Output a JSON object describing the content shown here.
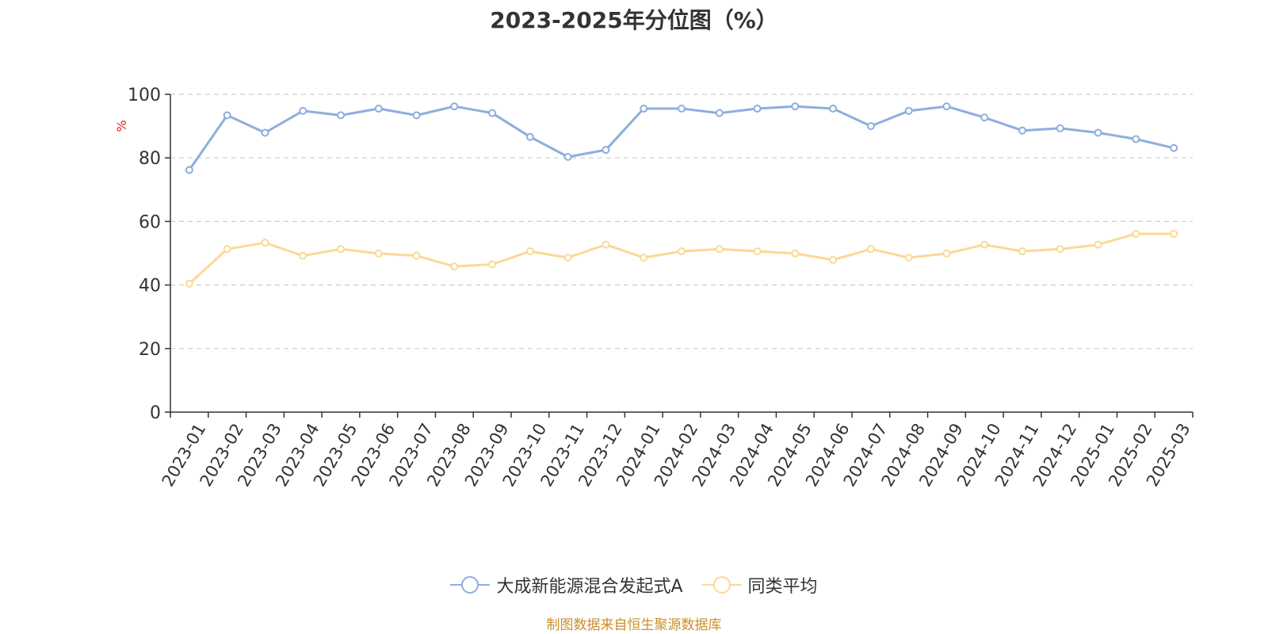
{
  "title": "2023-2025年分位图（%）",
  "footer": "制图数据来自恒生聚源数据库",
  "colors": {
    "series1": "#8eaedd",
    "series2": "#fbd995",
    "ylabel": "#e02020",
    "grid": "#cccccc",
    "axis": "#333333",
    "footer": "#c8902a"
  },
  "chart_data": {
    "type": "line",
    "title": "2023-2025年分位图（%）",
    "ylabel": "%",
    "xlabel": "",
    "ylim": [
      0,
      100
    ],
    "yticks": [
      0,
      20,
      40,
      60,
      80,
      100
    ],
    "grid": true,
    "legend_position": "bottom",
    "x": [
      "2023-01",
      "2023-02",
      "2023-03",
      "2023-04",
      "2023-05",
      "2023-06",
      "2023-07",
      "2023-08",
      "2023-09",
      "2023-10",
      "2023-11",
      "2023-12",
      "2024-01",
      "2024-02",
      "2024-03",
      "2024-04",
      "2024-05",
      "2024-06",
      "2024-07",
      "2024-08",
      "2024-09",
      "2024-10",
      "2024-11",
      "2024-12",
      "2025-01",
      "2025-02",
      "2025-03"
    ],
    "series": [
      {
        "name": "大成新能源混合发起式A",
        "values": [
          76.2,
          93.4,
          87.9,
          94.8,
          93.4,
          95.5,
          93.4,
          96.2,
          94.1,
          86.6,
          80.3,
          82.5,
          95.5,
          95.5,
          94.1,
          95.5,
          96.2,
          95.5,
          90.0,
          94.8,
          96.2,
          92.7,
          88.6,
          89.3,
          87.9,
          85.9,
          83.1
        ]
      },
      {
        "name": "同类平均",
        "values": [
          40.4,
          51.3,
          53.3,
          49.2,
          51.3,
          49.9,
          49.2,
          45.8,
          46.5,
          50.6,
          48.6,
          52.7,
          48.6,
          50.6,
          51.3,
          50.6,
          49.9,
          47.9,
          51.3,
          48.6,
          49.9,
          52.7,
          50.6,
          51.3,
          52.7,
          56.1,
          56.1
        ]
      }
    ]
  }
}
